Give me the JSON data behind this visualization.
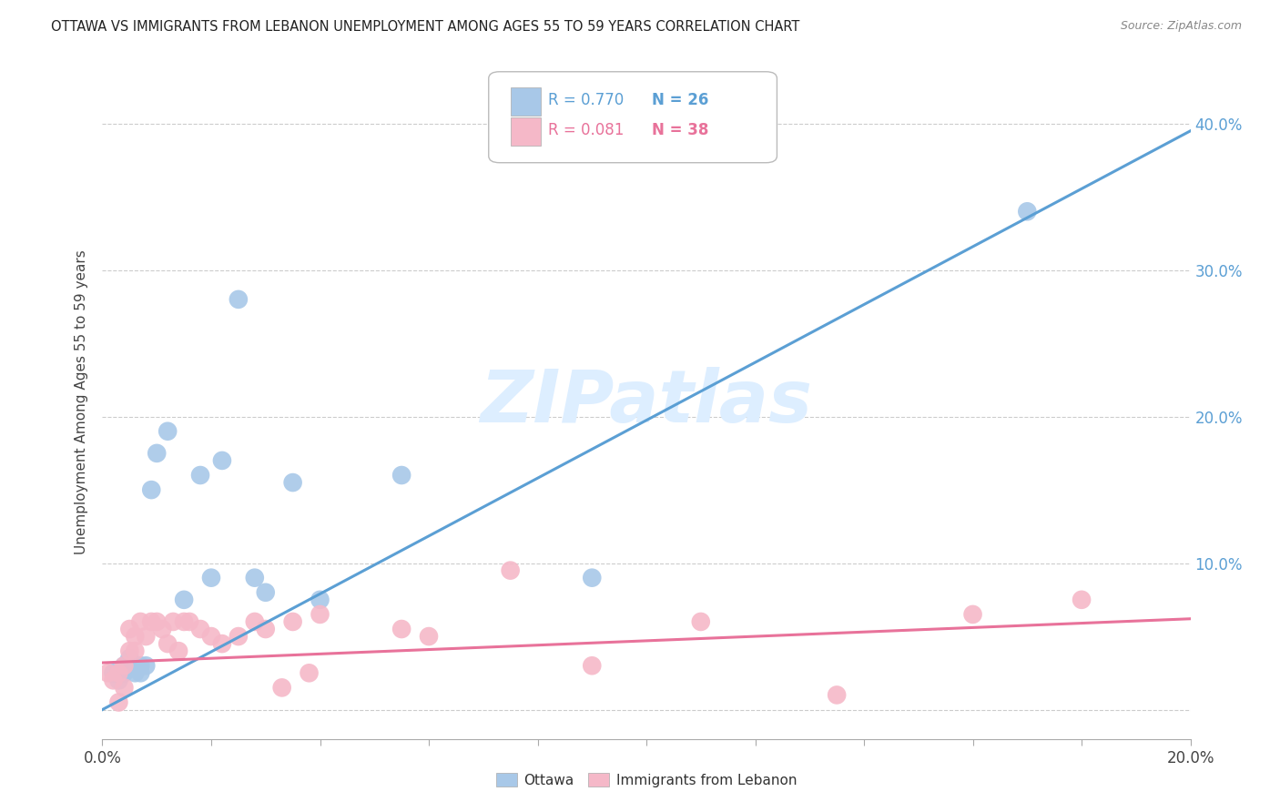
{
  "title": "OTTAWA VS IMMIGRANTS FROM LEBANON UNEMPLOYMENT AMONG AGES 55 TO 59 YEARS CORRELATION CHART",
  "source": "Source: ZipAtlas.com",
  "ylabel": "Unemployment Among Ages 55 to 59 years",
  "xlim": [
    0.0,
    0.2
  ],
  "ylim": [
    -0.02,
    0.44
  ],
  "ottawa_color": "#a8c8e8",
  "ottawa_line_color": "#5b9fd4",
  "lebanon_color": "#f5b8c8",
  "lebanon_line_color": "#e8729a",
  "ottawa_R": 0.77,
  "ottawa_N": 26,
  "lebanon_R": 0.081,
  "lebanon_N": 38,
  "watermark": "ZIPatlas",
  "watermark_color": "#ddeeff",
  "ottawa_x": [
    0.002,
    0.003,
    0.004,
    0.004,
    0.005,
    0.005,
    0.006,
    0.006,
    0.007,
    0.007,
    0.008,
    0.009,
    0.01,
    0.012,
    0.015,
    0.018,
    0.02,
    0.022,
    0.025,
    0.028,
    0.03,
    0.035,
    0.04,
    0.055,
    0.09,
    0.17
  ],
  "ottawa_y": [
    0.025,
    0.02,
    0.025,
    0.03,
    0.035,
    0.03,
    0.03,
    0.025,
    0.03,
    0.025,
    0.03,
    0.15,
    0.175,
    0.19,
    0.075,
    0.16,
    0.09,
    0.17,
    0.28,
    0.09,
    0.08,
    0.155,
    0.075,
    0.16,
    0.09,
    0.34
  ],
  "lebanon_x": [
    0.001,
    0.002,
    0.003,
    0.003,
    0.004,
    0.004,
    0.005,
    0.005,
    0.006,
    0.006,
    0.007,
    0.008,
    0.009,
    0.01,
    0.011,
    0.012,
    0.013,
    0.014,
    0.015,
    0.016,
    0.018,
    0.02,
    0.022,
    0.025,
    0.028,
    0.03,
    0.033,
    0.035,
    0.038,
    0.04,
    0.055,
    0.06,
    0.075,
    0.09,
    0.11,
    0.135,
    0.16,
    0.18
  ],
  "lebanon_y": [
    0.025,
    0.02,
    0.025,
    0.005,
    0.03,
    0.015,
    0.04,
    0.055,
    0.04,
    0.05,
    0.06,
    0.05,
    0.06,
    0.06,
    0.055,
    0.045,
    0.06,
    0.04,
    0.06,
    0.06,
    0.055,
    0.05,
    0.045,
    0.05,
    0.06,
    0.055,
    0.015,
    0.06,
    0.025,
    0.065,
    0.055,
    0.05,
    0.095,
    0.03,
    0.06,
    0.01,
    0.065,
    0.075
  ],
  "ottawa_line_x0": 0.0,
  "ottawa_line_y0": 0.0,
  "ottawa_line_x1": 0.2,
  "ottawa_line_y1": 0.395,
  "lebanon_line_x0": 0.0,
  "lebanon_line_y0": 0.032,
  "lebanon_line_x1": 0.2,
  "lebanon_line_y1": 0.062
}
